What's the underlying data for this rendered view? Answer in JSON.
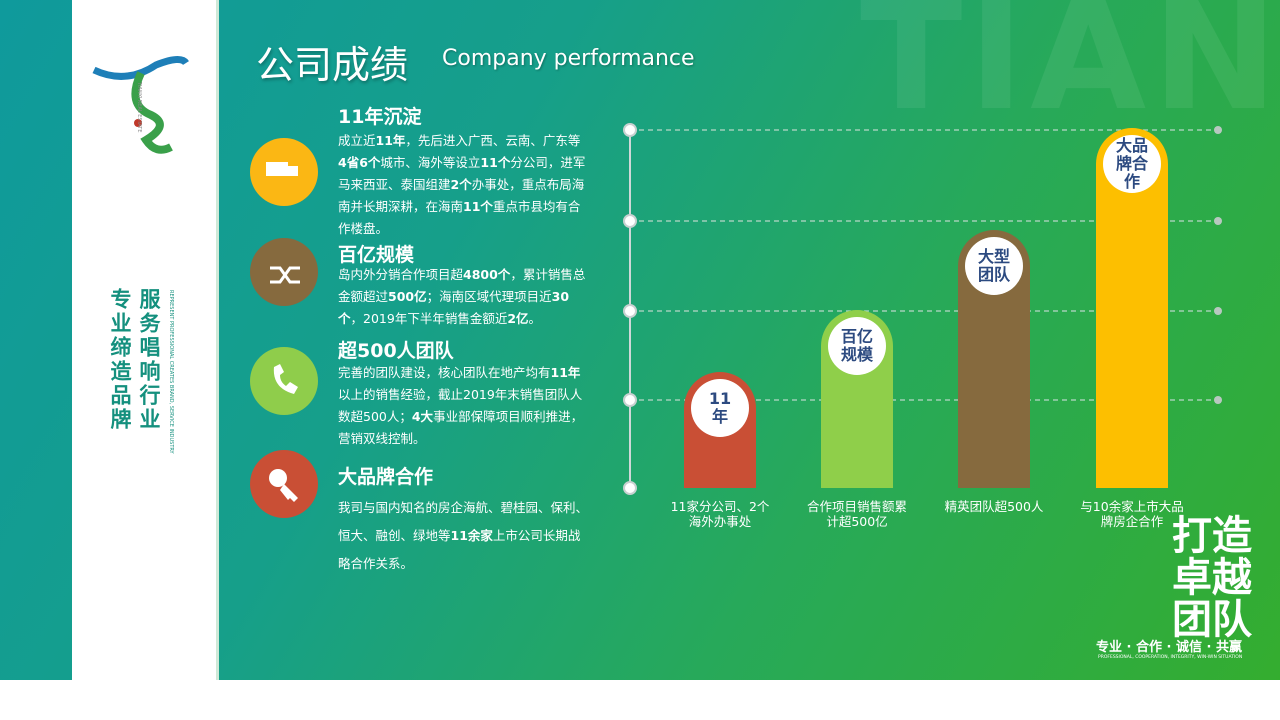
{
  "header": {
    "title": "公司成绩",
    "subtitle": "Company performance"
  },
  "watermark": "TIANYI",
  "sidebar": {
    "logo_text": "TIANYI REAL ESTATE",
    "slogan_right": "服务唱响行业",
    "slogan_left": "专业缔造品牌",
    "slogan_en": "REPRESENT PROFESSIONAL CREATES BRAND, SERVICE INDUSTRY"
  },
  "sections": [
    {
      "title": "11年沉淀",
      "body": [
        "成立近",
        "11年",
        "，先后进入广西、云南、广东等",
        "4省6个",
        "城市、海外等设立",
        "11个",
        "分公司，进军马来西亚、泰国组建",
        "2个",
        "办事处，重点布局海南并长期深耕，在海南",
        "11个",
        "重点市县均有合作楼盘。"
      ]
    },
    {
      "title": "百亿规模",
      "body": [
        "岛内外分销合作项目超",
        "4800个",
        "，累计销售总金额超过",
        "500亿",
        "；海南区域代理项目近",
        "30个",
        "，2019年下半年销售金额近",
        "2亿",
        "。"
      ]
    },
    {
      "title": "超500人团队",
      "body": [
        "完善的团队建设，核心团队在地产均有",
        "11年",
        "以上的销售经验，截止2019年末销售团队人数超500人；",
        "4大",
        "事业部保障项目顺利推进，营销双线控制。"
      ]
    },
    {
      "title": "大品牌合作",
      "body": [
        "我司与国内知名的房企海航、碧桂园、保利、恒大、融创、绿地等",
        "11余家",
        "上市公司长期战略合作关系。"
      ]
    }
  ],
  "pillars": [
    {
      "label": "11年",
      "caption": "11家分公司、2个海外办事处"
    },
    {
      "label": "百亿规模",
      "caption": "合作项目销售额累计超500亿"
    },
    {
      "label": "大型团队",
      "caption": "精英团队超500人"
    },
    {
      "label": "大品牌合作",
      "caption": "与10余家上市大品牌房企合作"
    }
  ],
  "footer": {
    "calligraphy": "打造卓越团队",
    "motto": "专业 · 合作 · 诚信 · 共赢",
    "motto_en": "PROFESSIONAL, COOPERATION, INTEGRITY, WIN-WIN SITUATION"
  }
}
